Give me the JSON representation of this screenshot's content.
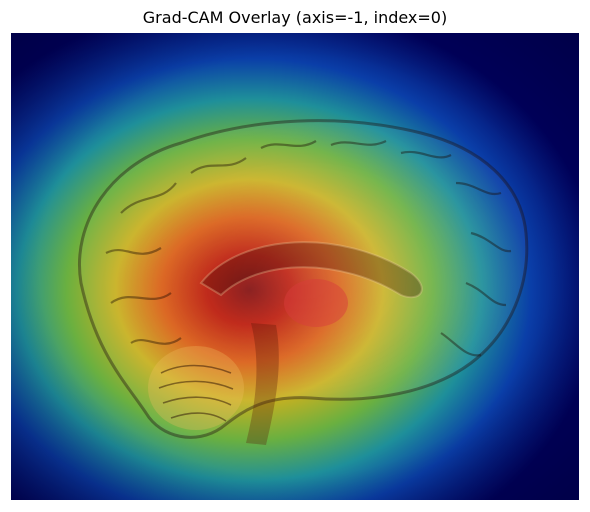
{
  "figure": {
    "title": "Grad-CAM Overlay (axis=-1, index=0)"
  },
  "image": {
    "subject": "sagittal-brain-mri",
    "colormap": "jet",
    "colors": {
      "background": "#ffffff",
      "cold": "#00007f",
      "cool": "#0040c0",
      "mid": "#00a0a0",
      "warm": "#e0c000",
      "hot": "#c02000",
      "peak": "#7a0000"
    }
  }
}
